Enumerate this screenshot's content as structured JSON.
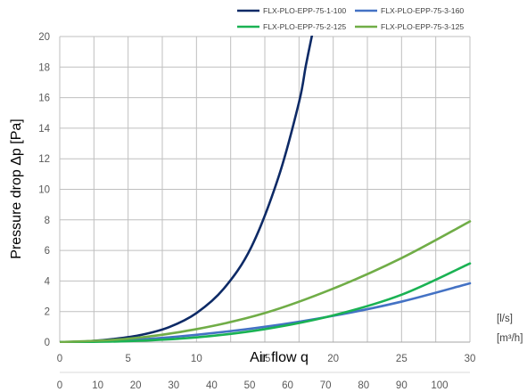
{
  "chart_data": {
    "type": "line",
    "title": "",
    "ylabel": "Pressure drop Δp [Pa]",
    "xlabel": "Air flow q",
    "x_unit": "[l/s]",
    "x2_unit": "[m³/h]",
    "xlim": [
      0,
      30
    ],
    "ylim": [
      0,
      20
    ],
    "x_ticks": [
      0,
      5,
      10,
      15,
      20,
      25,
      30
    ],
    "x2_ticks": [
      0,
      10,
      20,
      30,
      40,
      50,
      60,
      70,
      80,
      90,
      100
    ],
    "y_ticks": [
      0,
      2,
      4,
      6,
      8,
      10,
      12,
      14,
      16,
      18,
      20
    ],
    "grid": true,
    "legend_position": "top",
    "series": [
      {
        "name": "FLX-PLO-EPP-75-1-100",
        "color": "#0d2a66",
        "x": [
          0,
          2,
          4,
          6,
          8,
          10,
          12,
          14,
          16,
          17.5,
          18,
          18.5
        ],
        "y": [
          0,
          0.05,
          0.21,
          0.48,
          0.98,
          1.9,
          3.5,
          6.2,
          10.8,
          15.7,
          18.1,
          20.3
        ]
      },
      {
        "name": "FLX-PLO-EPP-75-3-160",
        "color": "#4472c4",
        "x": [
          0,
          5,
          10,
          15,
          20,
          25,
          30
        ],
        "y": [
          0,
          0.13,
          0.48,
          1.0,
          1.72,
          2.65,
          3.85
        ]
      },
      {
        "name": "FLX-PLO-EPP-75-2-125",
        "color": "#1ab253",
        "x": [
          0,
          5,
          10,
          15,
          20,
          25,
          30
        ],
        "y": [
          0,
          0.06,
          0.31,
          0.85,
          1.75,
          3.1,
          5.15
        ]
      },
      {
        "name": "FLX-PLO-EPP-75-3-125",
        "color": "#70ad47",
        "x": [
          0,
          5,
          10,
          15,
          20,
          25,
          30
        ],
        "y": [
          0,
          0.22,
          0.85,
          1.9,
          3.5,
          5.5,
          7.9
        ]
      }
    ]
  }
}
